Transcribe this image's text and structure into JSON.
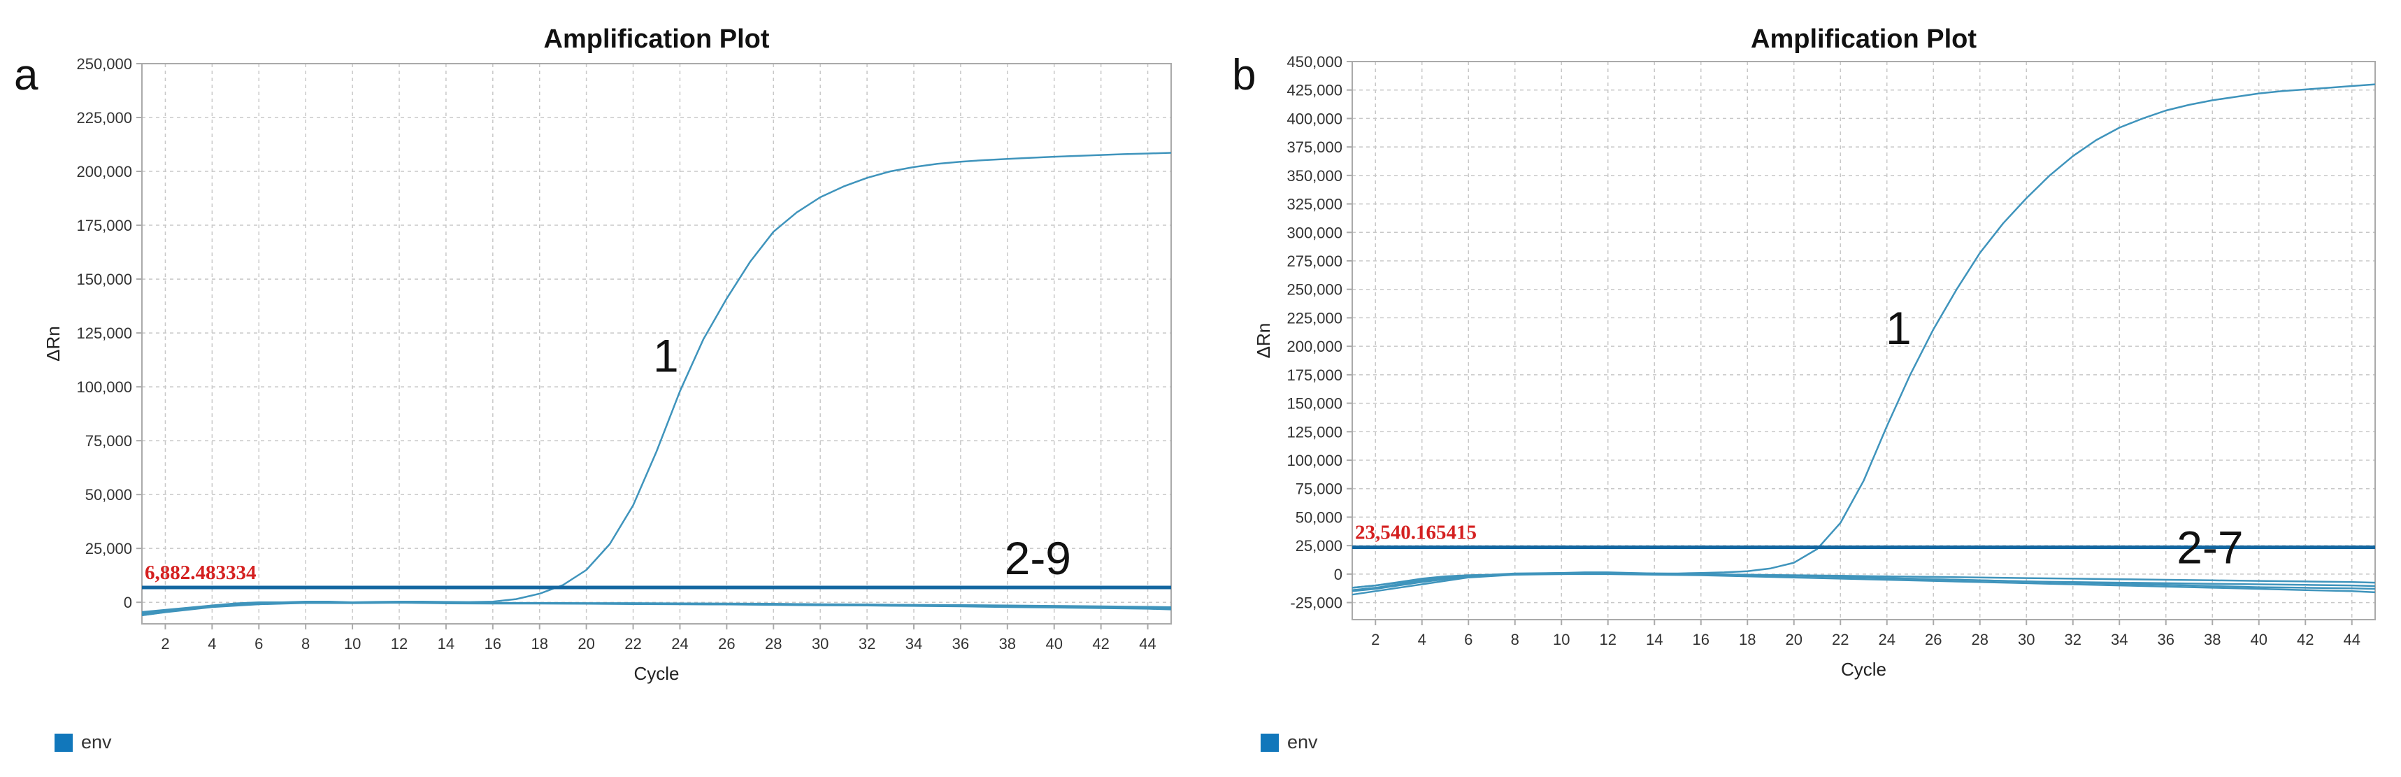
{
  "colors": {
    "curve": "#3f94bc",
    "threshold_line": "#1366a0",
    "threshold_label": "#d42020",
    "legend_swatch": "#1177bb",
    "grid": "#c8c8c8",
    "axis": "#aaaaaa"
  },
  "chart_data": [
    {
      "type": "line",
      "panel_label": "a",
      "title": "Amplification Plot",
      "xlabel": "Cycle",
      "ylabel": "ΔRn",
      "xlim": [
        1,
        45
      ],
      "ylim": [
        -10000,
        250000
      ],
      "x_ticks": [
        2,
        4,
        6,
        8,
        10,
        12,
        14,
        16,
        18,
        20,
        22,
        24,
        26,
        28,
        30,
        32,
        34,
        36,
        38,
        40,
        42,
        44
      ],
      "y_ticks": [
        0,
        25000,
        50000,
        75000,
        100000,
        125000,
        150000,
        175000,
        200000,
        225000,
        250000
      ],
      "y_tick_labels": [
        "0",
        "25,000",
        "50,000",
        "75,000",
        "100,000",
        "125,000",
        "150,000",
        "175,000",
        "200,000",
        "225,000",
        "250,000"
      ],
      "grid": true,
      "legend": {
        "position": "bottom-left",
        "entries": [
          "env"
        ]
      },
      "threshold": {
        "value": 6882.483334,
        "label": "6,882.483334"
      },
      "annotations": [
        {
          "text": "1",
          "x": 23.4,
          "y": 107000
        },
        {
          "text": "2-9",
          "x": 39.3,
          "y": 13000
        }
      ],
      "series": [
        {
          "x": [
            1,
            2,
            3,
            4,
            5,
            6,
            7,
            8,
            9,
            10,
            11,
            12,
            13,
            14,
            15,
            16,
            17,
            18,
            19,
            20,
            21,
            22,
            23,
            24,
            25,
            26,
            27,
            28,
            29,
            30,
            31,
            32,
            33,
            34,
            35,
            36,
            37,
            38,
            39,
            40,
            41,
            42,
            43,
            44,
            45
          ],
          "values": [
            -6000,
            -4500,
            -3000,
            -1500,
            -500,
            0,
            0,
            300,
            300,
            0,
            200,
            300,
            300,
            200,
            100,
            300,
            1500,
            4000,
            8000,
            15000,
            27000,
            45000,
            70000,
            98000,
            122000,
            141000,
            158000,
            172000,
            181000,
            188000,
            193000,
            197000,
            200000,
            202000,
            203500,
            204500,
            205200,
            205800,
            206300,
            206800,
            207200,
            207600,
            208000,
            208300,
            208600
          ]
        },
        {
          "x": [
            1,
            2,
            4,
            6,
            8,
            10,
            12,
            14,
            16,
            18,
            20,
            22,
            24,
            26,
            28,
            30,
            32,
            34,
            36,
            38,
            40,
            42,
            44,
            45
          ],
          "values": [
            -4500,
            -3500,
            -1500,
            -500,
            0,
            -200,
            0,
            -300,
            -400,
            -400,
            -500,
            -600,
            -700,
            -800,
            -900,
            -1000,
            -1100,
            -1300,
            -1400,
            -1600,
            -1800,
            -2000,
            -2300,
            -2500
          ]
        },
        {
          "x": [
            1,
            2,
            4,
            6,
            8,
            10,
            12,
            14,
            16,
            18,
            20,
            22,
            24,
            26,
            28,
            30,
            32,
            34,
            36,
            38,
            40,
            42,
            44,
            45
          ],
          "values": [
            -5500,
            -4200,
            -2000,
            -800,
            -200,
            -300,
            -100,
            -400,
            -500,
            -500,
            -600,
            -700,
            -800,
            -900,
            -1100,
            -1200,
            -1300,
            -1500,
            -1700,
            -1900,
            -2100,
            -2400,
            -2700,
            -3000
          ]
        },
        {
          "x": [
            1,
            2,
            4,
            6,
            8,
            10,
            12,
            14,
            16,
            18,
            20,
            22,
            24,
            26,
            28,
            30,
            32,
            34,
            36,
            38,
            40,
            42,
            44,
            45
          ],
          "values": [
            -5000,
            -3800,
            -1700,
            -600,
            0,
            -100,
            100,
            -200,
            -300,
            -300,
            -400,
            -400,
            -500,
            -600,
            -700,
            -900,
            -1000,
            -1200,
            -1300,
            -1500,
            -1700,
            -1900,
            -2100,
            -2300
          ]
        },
        {
          "x": [
            1,
            2,
            4,
            6,
            8,
            10,
            12,
            14,
            16,
            18,
            20,
            22,
            24,
            26,
            28,
            30,
            32,
            34,
            36,
            38,
            40,
            42,
            44,
            45
          ],
          "values": [
            -6000,
            -4600,
            -2200,
            -900,
            -300,
            -400,
            -200,
            -500,
            -600,
            -600,
            -700,
            -800,
            -900,
            -1000,
            -1200,
            -1400,
            -1500,
            -1700,
            -1900,
            -2200,
            -2400,
            -2700,
            -3000,
            -3300
          ]
        }
      ]
    },
    {
      "type": "line",
      "panel_label": "b",
      "title": "Amplification Plot",
      "xlabel": "Cycle",
      "ylabel": "ΔRn",
      "xlim": [
        1,
        45
      ],
      "ylim": [
        -40000,
        450000
      ],
      "x_ticks": [
        2,
        4,
        6,
        8,
        10,
        12,
        14,
        16,
        18,
        20,
        22,
        24,
        26,
        28,
        30,
        32,
        34,
        36,
        38,
        40,
        42,
        44
      ],
      "y_ticks": [
        -25000,
        0,
        25000,
        50000,
        75000,
        100000,
        125000,
        150000,
        175000,
        200000,
        225000,
        250000,
        275000,
        300000,
        325000,
        350000,
        375000,
        400000,
        425000,
        450000
      ],
      "y_tick_labels": [
        "-25,000",
        "0",
        "25,000",
        "50,000",
        "75,000",
        "100,000",
        "125,000",
        "150,000",
        "175,000",
        "200,000",
        "225,000",
        "250,000",
        "275,000",
        "300,000",
        "325,000",
        "350,000",
        "375,000",
        "400,000",
        "425,000",
        "450,000"
      ],
      "grid": true,
      "legend": {
        "position": "bottom-left",
        "entries": [
          "env"
        ]
      },
      "threshold": {
        "value": 23540.165415,
        "label": "23,540.165415"
      },
      "annotations": [
        {
          "text": "1",
          "x": 24.5,
          "y": 202000
        },
        {
          "text": "2-7",
          "x": 37.9,
          "y": 9500
        }
      ],
      "series": [
        {
          "x": [
            1,
            2,
            3,
            4,
            5,
            6,
            7,
            8,
            9,
            10,
            11,
            12,
            13,
            14,
            15,
            16,
            17,
            18,
            19,
            20,
            21,
            22,
            23,
            24,
            25,
            26,
            27,
            28,
            29,
            30,
            31,
            32,
            33,
            34,
            35,
            36,
            37,
            38,
            39,
            40,
            41,
            42,
            43,
            44,
            45
          ],
          "values": [
            -12000,
            -10000,
            -7000,
            -4000,
            -2000,
            -1000,
            -500,
            0,
            500,
            1000,
            1500,
            1500,
            1000,
            500,
            500,
            1000,
            1500,
            2500,
            5000,
            10000,
            22000,
            45000,
            82000,
            130000,
            175000,
            215000,
            250000,
            282000,
            308000,
            330000,
            350000,
            367000,
            381000,
            392000,
            400000,
            407000,
            412000,
            416000,
            419000,
            422000,
            424000,
            425500,
            427000,
            428500,
            430000
          ]
        },
        {
          "x": [
            1,
            2,
            4,
            6,
            8,
            10,
            12,
            14,
            16,
            18,
            20,
            22,
            24,
            26,
            28,
            30,
            32,
            34,
            36,
            38,
            40,
            42,
            44,
            45
          ],
          "values": [
            -15000,
            -13000,
            -7000,
            -2000,
            0,
            0,
            500,
            0,
            -500,
            -1000,
            -1500,
            -2500,
            -3500,
            -4500,
            -5500,
            -6500,
            -7000,
            -7500,
            -8000,
            -8500,
            -9000,
            -9500,
            -10000,
            -10500
          ]
        },
        {
          "x": [
            1,
            2,
            4,
            6,
            8,
            10,
            12,
            14,
            16,
            18,
            20,
            22,
            24,
            26,
            28,
            30,
            32,
            34,
            36,
            38,
            40,
            42,
            44,
            45
          ],
          "values": [
            -12000,
            -10000,
            -5000,
            -1500,
            500,
            1000,
            1000,
            500,
            0,
            -500,
            -1000,
            -1500,
            -2000,
            -2500,
            -3000,
            -3500,
            -4000,
            -4500,
            -5000,
            -5500,
            -6000,
            -6500,
            -7000,
            -7500
          ]
        },
        {
          "x": [
            1,
            2,
            4,
            6,
            8,
            10,
            12,
            14,
            16,
            18,
            20,
            22,
            24,
            26,
            28,
            30,
            32,
            34,
            36,
            38,
            40,
            42,
            44,
            45
          ],
          "values": [
            -18000,
            -15000,
            -9000,
            -3000,
            -500,
            0,
            0,
            -500,
            -1000,
            -2000,
            -3000,
            -4000,
            -5000,
            -6000,
            -7000,
            -8000,
            -9000,
            -10000,
            -11000,
            -12000,
            -13000,
            -14000,
            -15000,
            -16000
          ]
        },
        {
          "x": [
            1,
            2,
            4,
            6,
            8,
            10,
            12,
            14,
            16,
            18,
            20,
            22,
            24,
            26,
            28,
            30,
            32,
            34,
            36,
            38,
            40,
            42,
            44,
            45
          ],
          "values": [
            -14000,
            -12000,
            -6000,
            -2000,
            0,
            500,
            800,
            300,
            -200,
            -800,
            -1500,
            -2500,
            -3500,
            -4500,
            -5500,
            -6500,
            -7500,
            -8500,
            -9500,
            -10500,
            -11500,
            -12000,
            -12500,
            -13000
          ]
        }
      ]
    }
  ]
}
